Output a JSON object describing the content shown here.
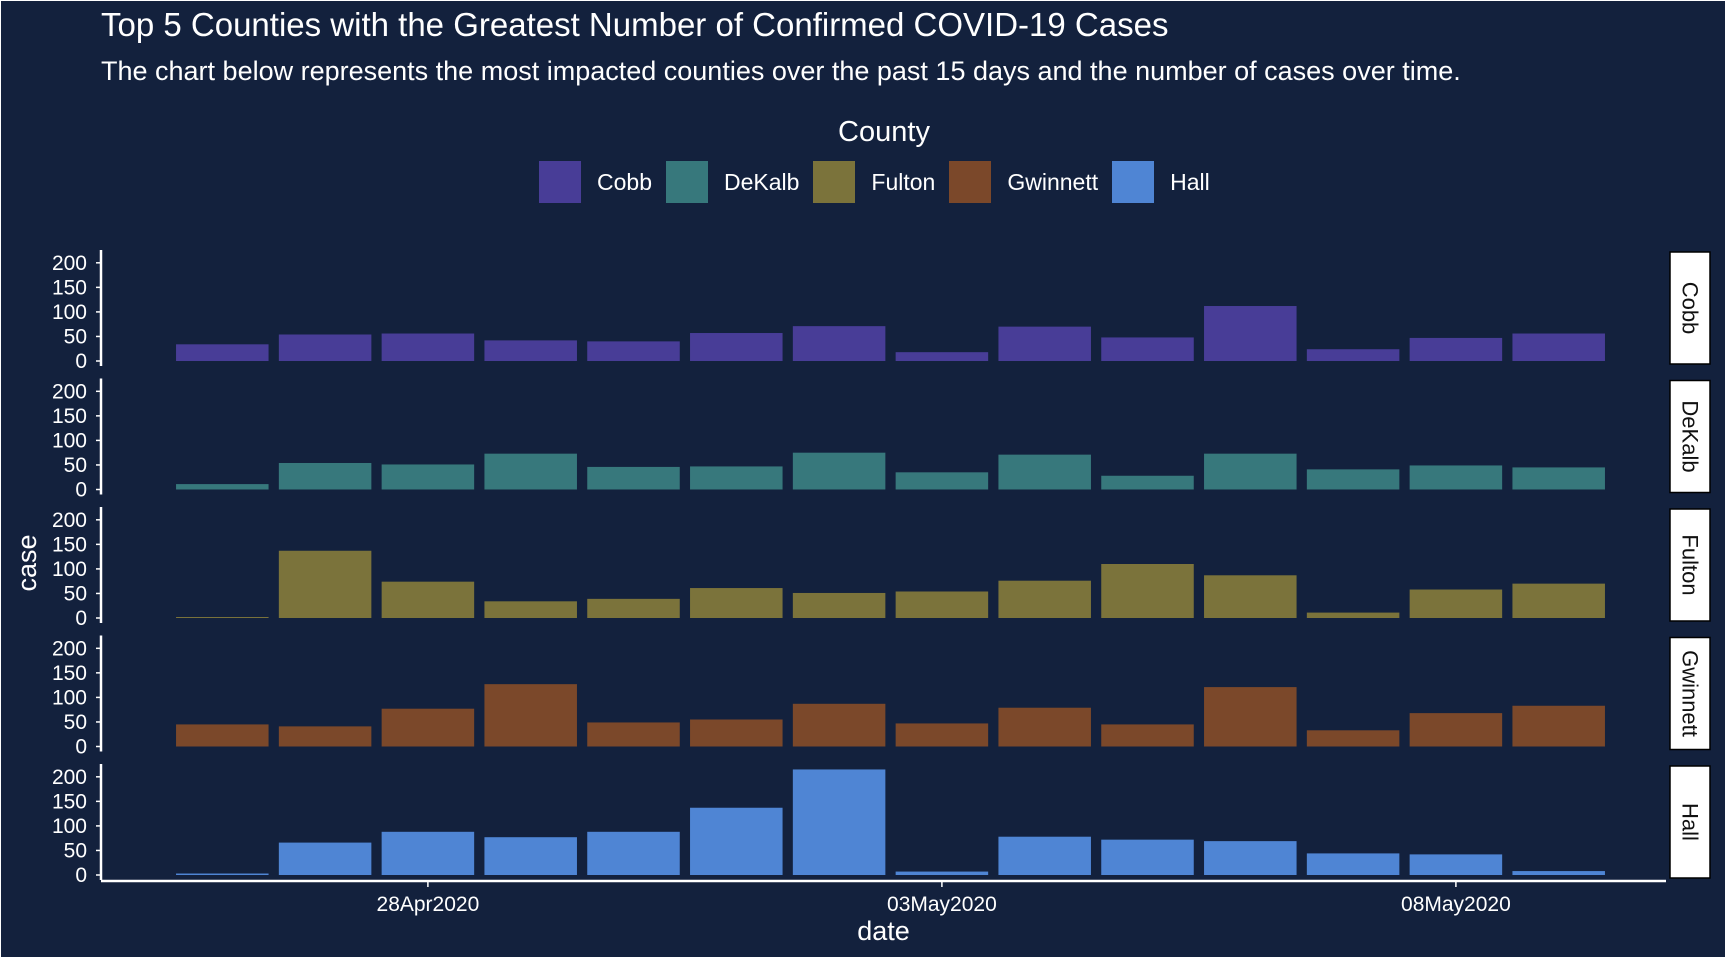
{
  "title": "Top 5 Counties with the Greatest Number of Confirmed COVID-19 Cases",
  "subtitle": "The chart below represents the most impacted counties over the past 15 days and the number of cases over time.",
  "legend": {
    "title": "County",
    "items": [
      {
        "label": "Cobb",
        "color": "#483d97"
      },
      {
        "label": "DeKalb",
        "color": "#37787c"
      },
      {
        "label": "Fulton",
        "color": "#7b733b"
      },
      {
        "label": "Gwinnett",
        "color": "#7b482a"
      },
      {
        "label": "Hall",
        "color": "#4f85d4"
      }
    ]
  },
  "chart_data": {
    "type": "bar",
    "facets": "rows",
    "xlabel": "date",
    "ylabel": "case",
    "ylim": [
      0,
      220
    ],
    "yticks": [
      0,
      50,
      100,
      150,
      200
    ],
    "x_ticks": [
      "28Apr2020",
      "03May2020",
      "08May2020"
    ],
    "dates": [
      "2020-04-25",
      "2020-04-26",
      "2020-04-27",
      "2020-04-28",
      "2020-04-29",
      "2020-04-30",
      "2020-05-01",
      "2020-05-02",
      "2020-05-03",
      "2020-05-04",
      "2020-05-05",
      "2020-05-06",
      "2020-05-07",
      "2020-05-08",
      "2020-05-09"
    ],
    "series": [
      {
        "name": "Cobb",
        "color": "#483d97",
        "values": [
          null,
          34,
          54,
          56,
          42,
          40,
          57,
          71,
          18,
          70,
          48,
          112,
          24,
          47,
          56
        ]
      },
      {
        "name": "DeKalb",
        "color": "#37787c",
        "values": [
          null,
          11,
          54,
          51,
          73,
          46,
          47,
          75,
          35,
          71,
          28,
          73,
          41,
          49,
          45
        ]
      },
      {
        "name": "Fulton",
        "color": "#7b733b",
        "values": [
          null,
          2,
          137,
          74,
          34,
          39,
          61,
          51,
          54,
          76,
          110,
          87,
          11,
          58,
          70
        ]
      },
      {
        "name": "Gwinnett",
        "color": "#7b482a",
        "values": [
          null,
          45,
          41,
          77,
          127,
          49,
          55,
          87,
          47,
          79,
          45,
          121,
          33,
          68,
          83
        ]
      },
      {
        "name": "Hall",
        "color": "#4f85d4",
        "values": [
          null,
          3,
          66,
          88,
          77,
          88,
          137,
          215,
          7,
          78,
          72,
          69,
          44,
          42,
          8
        ]
      }
    ]
  }
}
